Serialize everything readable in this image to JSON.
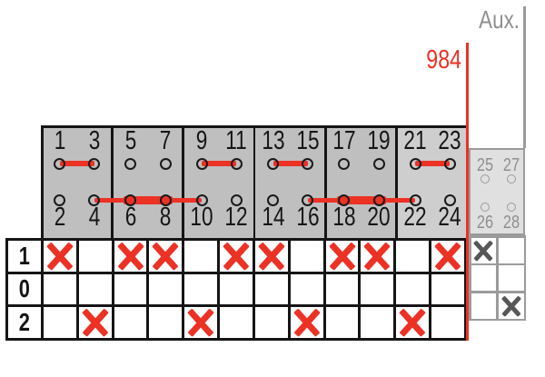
{
  "header": {
    "aux_label": "Aux.",
    "wiring_ref": "984"
  },
  "colors": {
    "red": "#ec3125",
    "group_fill": "#bfbfbf",
    "group6_fill": "#cecece",
    "aux_fill": "#e0e0e0",
    "aux_line": "#9b9b9b",
    "aux_text": "#8f8f8f",
    "aux_mark": "#575757",
    "line_black": "#151515",
    "pin_stroke": "#1a1a1a"
  },
  "connector_block": {
    "groups": [
      {
        "pins_top": [
          "1",
          "3"
        ],
        "pins_bottom": [
          "2",
          "4"
        ],
        "top_jumper": true
      },
      {
        "pins_top": [
          "5",
          "7"
        ],
        "pins_bottom": [
          "6",
          "8"
        ],
        "top_jumper": false
      },
      {
        "pins_top": [
          "9",
          "11"
        ],
        "pins_bottom": [
          "10",
          "12"
        ],
        "top_jumper": true
      },
      {
        "pins_top": [
          "13",
          "15"
        ],
        "pins_bottom": [
          "14",
          "16"
        ],
        "top_jumper": true
      },
      {
        "pins_top": [
          "17",
          "19"
        ],
        "pins_bottom": [
          "18",
          "20"
        ],
        "top_jumper": false
      },
      {
        "pins_top": [
          "21",
          "23"
        ],
        "pins_bottom": [
          "22",
          "24"
        ],
        "top_jumper": true
      }
    ],
    "bottom_jumpers": [
      {
        "pins": [
          "4",
          "6",
          "8",
          "10"
        ]
      },
      {
        "pins": [
          "16",
          "18",
          "20",
          "22"
        ]
      }
    ]
  },
  "aux_block": {
    "pins_top": [
      "25",
      "27"
    ],
    "pins_bottom": [
      "26",
      "28"
    ]
  },
  "program_table": {
    "row_labels": [
      "1",
      "0",
      "2"
    ],
    "columns": 12,
    "rows": [
      {
        "label": "1",
        "marks": [
          1,
          0,
          1,
          1,
          0,
          1,
          1,
          0,
          1,
          1,
          0,
          1
        ]
      },
      {
        "label": "0",
        "marks": [
          0,
          0,
          0,
          0,
          0,
          0,
          0,
          0,
          0,
          0,
          0,
          0
        ]
      },
      {
        "label": "2",
        "marks": [
          0,
          1,
          0,
          0,
          1,
          0,
          0,
          1,
          0,
          0,
          1,
          0
        ]
      }
    ]
  },
  "aux_table": {
    "rows": [
      [
        1,
        0
      ],
      [
        0,
        0
      ],
      [
        0,
        1
      ]
    ]
  }
}
